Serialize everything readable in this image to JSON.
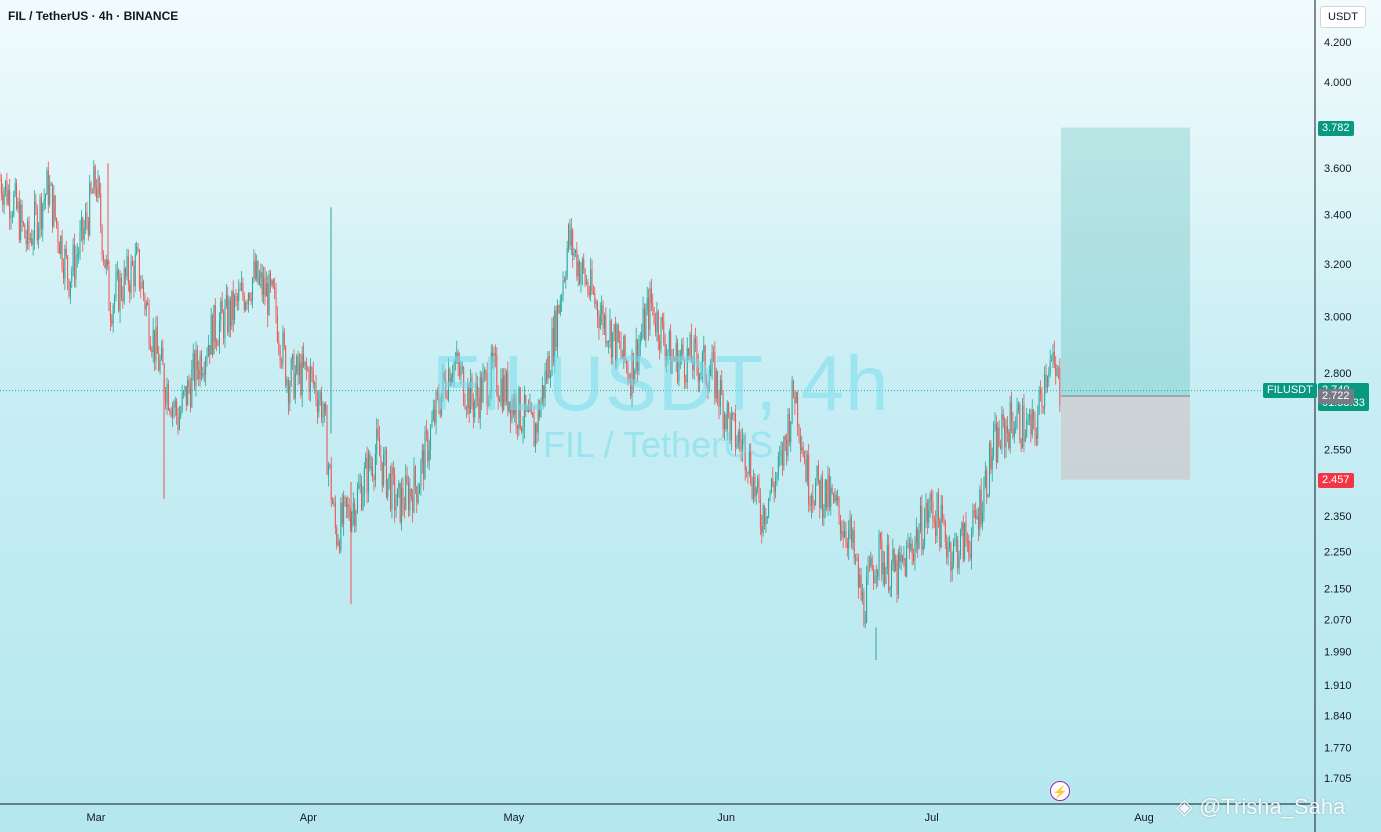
{
  "header": {
    "symbol_line": "FIL / TetherUS · 4h · BINANCE"
  },
  "quote_currency": "USDT",
  "watermark": {
    "main": "FILUSDT, 4h",
    "sub": "FIL / TetherUS"
  },
  "credit": "@Trisha_Saha",
  "colors": {
    "up": "#26a69a",
    "down": "#ef5350",
    "target_zone": "#26a69a",
    "stop_zone": "#f44336",
    "target_tag": "#089981",
    "stop_tag": "#f23645",
    "current_tag": "#089981",
    "entry_tag": "#787b86"
  },
  "chart_data": {
    "type": "candlestick",
    "title": "FIL / TetherUS · 4h · BINANCE",
    "x_ticks": [
      "Mar",
      "Apr",
      "May",
      "Jun",
      "Jul",
      "Aug"
    ],
    "y_ticks": [
      "4.200",
      "4.000",
      "3.600",
      "3.400",
      "3.200",
      "3.000",
      "2.800",
      "2.550",
      "2.350",
      "2.250",
      "2.150",
      "2.070",
      "1.990",
      "1.910",
      "1.840",
      "1.770",
      "1.705"
    ],
    "price_scale": "log",
    "price_range": [
      1.68,
      4.3
    ],
    "grid": false,
    "series_price_path": [
      [
        "2023-02-14",
        3.6
      ],
      [
        "2023-02-17",
        3.45
      ],
      [
        "2023-02-19",
        3.28
      ],
      [
        "2023-02-22",
        3.52
      ],
      [
        "2023-02-25",
        3.15
      ],
      [
        "2023-02-27",
        3.3
      ],
      [
        "2023-03-01",
        3.55
      ],
      [
        "2023-03-03",
        3.05
      ],
      [
        "2023-03-07",
        3.2
      ],
      [
        "2023-03-10",
        2.85
      ],
      [
        "2023-03-13",
        2.65
      ],
      [
        "2023-03-15",
        2.78
      ],
      [
        "2023-03-18",
        2.95
      ],
      [
        "2023-03-21",
        3.02
      ],
      [
        "2023-03-24",
        3.15
      ],
      [
        "2023-03-27",
        3.05
      ],
      [
        "2023-03-29",
        2.78
      ],
      [
        "2023-04-01",
        2.8
      ],
      [
        "2023-04-03",
        2.7
      ],
      [
        "2023-04-05",
        2.3
      ],
      [
        "2023-04-08",
        2.4
      ],
      [
        "2023-04-11",
        2.55
      ],
      [
        "2023-04-14",
        2.38
      ],
      [
        "2023-04-17",
        2.45
      ],
      [
        "2023-04-20",
        2.7
      ],
      [
        "2023-04-22",
        2.85
      ],
      [
        "2023-04-25",
        2.7
      ],
      [
        "2023-04-28",
        2.8
      ],
      [
        "2023-05-01",
        2.7
      ],
      [
        "2023-05-04",
        2.6
      ],
      [
        "2023-05-07",
        2.95
      ],
      [
        "2023-05-09",
        3.3
      ],
      [
        "2023-05-12",
        3.1
      ],
      [
        "2023-05-15",
        2.95
      ],
      [
        "2023-05-18",
        2.8
      ],
      [
        "2023-05-21",
        3.05
      ],
      [
        "2023-05-24",
        2.85
      ],
      [
        "2023-05-27",
        2.85
      ],
      [
        "2023-05-30",
        2.8
      ],
      [
        "2023-06-02",
        2.6
      ],
      [
        "2023-06-04",
        2.55
      ],
      [
        "2023-06-06",
        2.35
      ],
      [
        "2023-06-09",
        2.5
      ],
      [
        "2023-06-11",
        2.75
      ],
      [
        "2023-06-13",
        2.45
      ],
      [
        "2023-06-16",
        2.4
      ],
      [
        "2023-06-19",
        2.3
      ],
      [
        "2023-06-21",
        2.1
      ],
      [
        "2023-06-23",
        2.25
      ],
      [
        "2023-06-26",
        2.18
      ],
      [
        "2023-06-29",
        2.3
      ],
      [
        "2023-07-01",
        2.38
      ],
      [
        "2023-07-04",
        2.25
      ],
      [
        "2023-07-07",
        2.3
      ],
      [
        "2023-07-10",
        2.55
      ],
      [
        "2023-07-13",
        2.65
      ],
      [
        "2023-07-16",
        2.6
      ],
      [
        "2023-07-18",
        2.85
      ],
      [
        "2023-07-20",
        2.74
      ]
    ],
    "last_price": "2.740",
    "countdown": "01:53:33",
    "symbol_tag": "FILUSDT",
    "position": {
      "type": "long",
      "entry": 2.722,
      "target": 3.782,
      "stop": 2.457,
      "entry_label": "2.722",
      "target_label": "3.782",
      "stop_label": "2.457"
    }
  }
}
